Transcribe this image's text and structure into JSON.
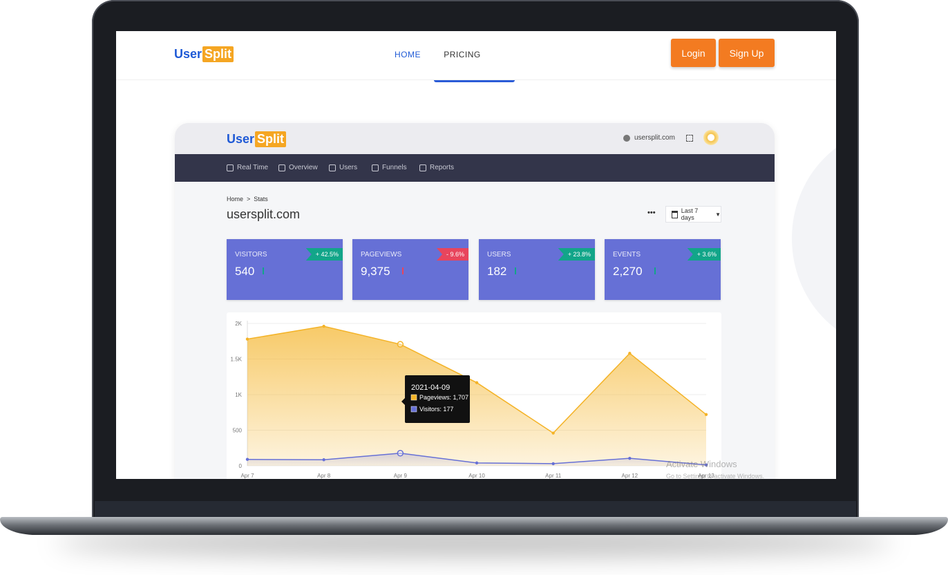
{
  "header": {
    "logo": {
      "left": "User",
      "right": "Split"
    },
    "nav": [
      "HOME",
      "PRICING"
    ],
    "buttons": [
      "Login",
      "Sign Up"
    ]
  },
  "dashboard": {
    "logo": {
      "left": "User",
      "right": "Split"
    },
    "site_selector": "usersplit.com",
    "menu": [
      "Real Time",
      "Overview",
      "Users",
      "Funnels",
      "Reports"
    ],
    "breadcrumb": [
      "Home",
      "Stats"
    ],
    "title": "usersplit.com",
    "date_range": "Last 7 days",
    "cards": [
      {
        "label": "VISITORS",
        "value": "540",
        "change": "+ 42.5%",
        "badge_color": "#12a589"
      },
      {
        "label": "PAGEVIEWS",
        "value": "9,375",
        "change": "- 9.6%",
        "badge_color": "#e8455d"
      },
      {
        "label": "USERS",
        "value": "182",
        "change": "+ 23.8%",
        "badge_color": "#12a589"
      },
      {
        "label": "EVENTS",
        "value": "2,270",
        "change": "+ 3.6%",
        "badge_color": "#12a589"
      }
    ]
  },
  "chart_data": {
    "type": "area",
    "categories": [
      "Apr 7",
      "Apr 8",
      "Apr 9",
      "Apr 10",
      "Apr 11",
      "Apr 12",
      "Apr 13"
    ],
    "series": [
      {
        "color": "#f4b327",
        "values": [
          1780,
          1960,
          1707,
          1168,
          460,
          1580,
          720
        ]
      },
      {
        "color": "#6670d6",
        "values": [
          90,
          85,
          177,
          40,
          30,
          105,
          13
        ]
      }
    ],
    "ylim": [
      0,
      2000
    ],
    "yticks": [
      0,
      500,
      {
        "value": 1000,
        "label": "1K"
      },
      {
        "value": 1500,
        "label": "1.5K"
      },
      {
        "value": 2000,
        "label": "2K"
      }
    ],
    "grid": true,
    "tooltip": {
      "title": "2021-04-09",
      "lines": [
        "Pageviews: 1,707",
        "Visitors: 177"
      ]
    }
  },
  "watermark": {
    "title": "Activate Windows",
    "text": "Go to Settings to activate Windows."
  }
}
